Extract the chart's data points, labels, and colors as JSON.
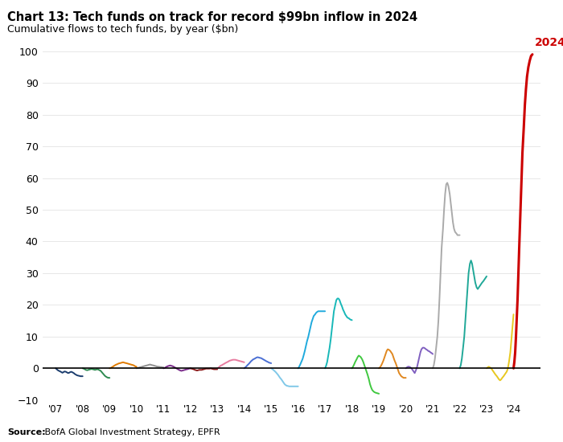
{
  "title": "Chart 13: Tech funds on track for record $99bn inflow in 2024",
  "subtitle": "Cumulative flows to tech funds, by year ($bn)",
  "source_bold": "Source:",
  "source_rest": " BofA Global Investment Strategy, EPFR",
  "xlabel_ticks": [
    "'07",
    "'08",
    "'09",
    "'10",
    "'11",
    "'12",
    "'13",
    "'14",
    "'15",
    "'16",
    "'17",
    "'18",
    "'19",
    "'20",
    "'21",
    "'22",
    "'23",
    "'24"
  ],
  "ylim": [
    -10,
    105
  ],
  "yticks": [
    -10,
    0,
    10,
    20,
    30,
    40,
    50,
    60,
    70,
    80,
    90,
    100
  ],
  "years_label": "2024",
  "label_2024_color": "#cc0000",
  "year_colors": {
    "2007": "#1b3d6e",
    "2008": "#2d8a50",
    "2009": "#e07b00",
    "2010": "#909090",
    "2011": "#7b2d8b",
    "2012": "#8b1a1a",
    "2013": "#e87ca0",
    "2014": "#4a6fd4",
    "2015": "#80c8e8",
    "2016": "#20aadd",
    "2017": "#18b8b8",
    "2018": "#40c840",
    "2019": "#e08820",
    "2020": "#8060c0",
    "2021": "#aaaaaa",
    "2022": "#20a898",
    "2023": "#e8c820",
    "2024": "#cc0000"
  },
  "series": {
    "2007": {
      "x": [
        0.0,
        0.04,
        0.08,
        0.12,
        0.17,
        0.21,
        0.25,
        0.29,
        0.33,
        0.38,
        0.42,
        0.46,
        0.5,
        0.54,
        0.58,
        0.63,
        0.67,
        0.71,
        0.75,
        0.79,
        0.83,
        0.88,
        0.92,
        0.96,
        1.0
      ],
      "y": [
        0.0,
        -0.3,
        -0.6,
        -0.8,
        -1.0,
        -1.2,
        -1.4,
        -1.2,
        -1.0,
        -1.1,
        -1.3,
        -1.5,
        -1.4,
        -1.2,
        -1.1,
        -1.3,
        -1.5,
        -1.8,
        -2.0,
        -2.2,
        -2.3,
        -2.4,
        -2.5,
        -2.5,
        -2.5
      ]
    },
    "2008": {
      "x": [
        0.0,
        0.04,
        0.08,
        0.12,
        0.17,
        0.21,
        0.25,
        0.29,
        0.33,
        0.38,
        0.42,
        0.46,
        0.5,
        0.54,
        0.58,
        0.63,
        0.67,
        0.71,
        0.75,
        0.79,
        0.83,
        0.88,
        0.92,
        0.96,
        1.0
      ],
      "y": [
        0.0,
        -0.1,
        -0.3,
        -0.5,
        -0.6,
        -0.5,
        -0.4,
        -0.3,
        -0.2,
        -0.3,
        -0.4,
        -0.5,
        -0.4,
        -0.3,
        -0.4,
        -0.6,
        -0.8,
        -1.2,
        -1.6,
        -2.0,
        -2.4,
        -2.7,
        -2.9,
        -3.0,
        -3.0
      ]
    },
    "2009": {
      "x": [
        0.0,
        0.04,
        0.08,
        0.12,
        0.17,
        0.21,
        0.25,
        0.29,
        0.33,
        0.38,
        0.42,
        0.46,
        0.5,
        0.54,
        0.58,
        0.63,
        0.67,
        0.71,
        0.75,
        0.79,
        0.83,
        0.88,
        0.92,
        0.96,
        1.0
      ],
      "y": [
        0.0,
        0.1,
        0.3,
        0.5,
        0.8,
        1.0,
        1.2,
        1.3,
        1.5,
        1.6,
        1.7,
        1.8,
        1.9,
        1.8,
        1.7,
        1.6,
        1.5,
        1.4,
        1.3,
        1.2,
        1.1,
        1.0,
        0.8,
        0.6,
        0.5
      ]
    },
    "2010": {
      "x": [
        0.0,
        0.04,
        0.08,
        0.12,
        0.17,
        0.21,
        0.25,
        0.29,
        0.33,
        0.38,
        0.42,
        0.46,
        0.5,
        0.54,
        0.58,
        0.63,
        0.67,
        0.71,
        0.75,
        0.79,
        0.83,
        0.88,
        0.92,
        0.96,
        1.0
      ],
      "y": [
        0.0,
        0.1,
        0.2,
        0.3,
        0.4,
        0.5,
        0.6,
        0.7,
        0.8,
        0.9,
        1.0,
        1.1,
        1.2,
        1.1,
        1.0,
        0.9,
        0.8,
        0.7,
        0.6,
        0.5,
        0.5,
        0.4,
        0.4,
        0.3,
        0.3
      ]
    },
    "2011": {
      "x": [
        0.0,
        0.04,
        0.08,
        0.12,
        0.17,
        0.21,
        0.25,
        0.29,
        0.33,
        0.38,
        0.42,
        0.46,
        0.5,
        0.54,
        0.58,
        0.63,
        0.67,
        0.71,
        0.75,
        0.79,
        0.83,
        0.88,
        0.92,
        0.96,
        1.0
      ],
      "y": [
        0.0,
        0.1,
        0.3,
        0.5,
        0.7,
        0.8,
        0.9,
        0.8,
        0.7,
        0.5,
        0.3,
        0.1,
        -0.1,
        -0.3,
        -0.5,
        -0.7,
        -0.8,
        -0.7,
        -0.6,
        -0.5,
        -0.4,
        -0.3,
        -0.2,
        -0.1,
        0.0
      ]
    },
    "2012": {
      "x": [
        0.0,
        0.04,
        0.08,
        0.12,
        0.17,
        0.21,
        0.25,
        0.29,
        0.33,
        0.38,
        0.42,
        0.46,
        0.5,
        0.54,
        0.58,
        0.63,
        0.67,
        0.71,
        0.75,
        0.79,
        0.83,
        0.88,
        0.92,
        0.96,
        1.0
      ],
      "y": [
        0.0,
        -0.1,
        -0.2,
        -0.3,
        -0.5,
        -0.6,
        -0.7,
        -0.6,
        -0.5,
        -0.5,
        -0.5,
        -0.4,
        -0.3,
        -0.2,
        -0.1,
        -0.1,
        -0.1,
        -0.1,
        0.0,
        -0.1,
        -0.2,
        -0.3,
        -0.3,
        -0.3,
        -0.3
      ]
    },
    "2013": {
      "x": [
        0.0,
        0.04,
        0.08,
        0.12,
        0.17,
        0.21,
        0.25,
        0.29,
        0.33,
        0.38,
        0.42,
        0.46,
        0.5,
        0.54,
        0.58,
        0.63,
        0.67,
        0.71,
        0.75,
        0.79,
        0.83,
        0.88,
        0.92,
        0.96,
        1.0
      ],
      "y": [
        0.0,
        0.2,
        0.5,
        0.8,
        1.0,
        1.2,
        1.4,
        1.6,
        1.8,
        2.0,
        2.2,
        2.4,
        2.5,
        2.6,
        2.7,
        2.7,
        2.7,
        2.6,
        2.5,
        2.4,
        2.3,
        2.2,
        2.1,
        2.0,
        1.9
      ]
    },
    "2014": {
      "x": [
        0.0,
        0.04,
        0.08,
        0.12,
        0.17,
        0.21,
        0.25,
        0.29,
        0.33,
        0.38,
        0.42,
        0.46,
        0.5,
        0.54,
        0.58,
        0.63,
        0.67,
        0.71,
        0.75,
        0.79,
        0.83,
        0.88,
        0.92,
        0.96,
        1.0
      ],
      "y": [
        0.0,
        0.3,
        0.6,
        1.0,
        1.4,
        1.8,
        2.2,
        2.5,
        2.8,
        3.0,
        3.2,
        3.4,
        3.5,
        3.4,
        3.3,
        3.2,
        3.0,
        2.8,
        2.6,
        2.4,
        2.2,
        2.0,
        1.8,
        1.7,
        1.6
      ]
    },
    "2015": {
      "x": [
        0.0,
        0.04,
        0.08,
        0.12,
        0.17,
        0.21,
        0.25,
        0.29,
        0.33,
        0.38,
        0.42,
        0.46,
        0.5,
        0.54,
        0.58,
        0.63,
        0.67,
        0.71,
        0.75,
        0.79,
        0.83,
        0.88,
        0.92,
        0.96,
        1.0
      ],
      "y": [
        0.0,
        -0.2,
        -0.5,
        -0.8,
        -1.2,
        -1.6,
        -2.0,
        -2.5,
        -3.0,
        -3.5,
        -4.0,
        -4.5,
        -5.0,
        -5.3,
        -5.5,
        -5.6,
        -5.7,
        -5.7,
        -5.7,
        -5.7,
        -5.7,
        -5.7,
        -5.7,
        -5.7,
        -5.7
      ]
    },
    "2016": {
      "x": [
        0.0,
        0.04,
        0.08,
        0.12,
        0.17,
        0.21,
        0.25,
        0.29,
        0.33,
        0.38,
        0.42,
        0.46,
        0.5,
        0.54,
        0.58,
        0.63,
        0.67,
        0.71,
        0.75,
        0.79,
        0.83,
        0.88,
        0.92,
        0.96,
        1.0
      ],
      "y": [
        0.0,
        0.5,
        1.2,
        2.0,
        3.0,
        4.2,
        5.5,
        7.0,
        8.5,
        10.0,
        11.5,
        13.0,
        14.5,
        15.5,
        16.5,
        17.0,
        17.5,
        17.8,
        18.0,
        18.0,
        18.0,
        18.0,
        18.0,
        18.0,
        18.0
      ]
    },
    "2017": {
      "x": [
        0.0,
        0.04,
        0.08,
        0.12,
        0.17,
        0.21,
        0.25,
        0.29,
        0.33,
        0.38,
        0.42,
        0.46,
        0.5,
        0.54,
        0.58,
        0.63,
        0.67,
        0.71,
        0.75,
        0.79,
        0.83,
        0.88,
        0.92,
        0.96,
        1.0
      ],
      "y": [
        0.0,
        0.8,
        2.0,
        4.0,
        6.5,
        9.0,
        12.0,
        15.0,
        18.0,
        20.0,
        21.5,
        22.0,
        22.0,
        21.5,
        20.5,
        19.5,
        18.5,
        17.8,
        17.0,
        16.5,
        16.0,
        15.8,
        15.5,
        15.3,
        15.2
      ]
    },
    "2018": {
      "x": [
        0.0,
        0.04,
        0.08,
        0.12,
        0.17,
        0.21,
        0.25,
        0.29,
        0.33,
        0.38,
        0.42,
        0.46,
        0.5,
        0.54,
        0.58,
        0.63,
        0.67,
        0.71,
        0.75,
        0.79,
        0.83,
        0.88,
        0.92,
        0.96,
        1.0
      ],
      "y": [
        0.0,
        0.5,
        1.2,
        2.0,
        2.8,
        3.5,
        4.0,
        3.8,
        3.5,
        2.8,
        2.0,
        1.0,
        0.0,
        -1.0,
        -2.0,
        -3.5,
        -5.0,
        -6.0,
        -6.8,
        -7.2,
        -7.5,
        -7.7,
        -7.8,
        -7.9,
        -8.0
      ]
    },
    "2019": {
      "x": [
        0.0,
        0.04,
        0.08,
        0.12,
        0.17,
        0.21,
        0.25,
        0.29,
        0.33,
        0.38,
        0.42,
        0.46,
        0.5,
        0.54,
        0.58,
        0.63,
        0.67,
        0.71,
        0.75,
        0.79,
        0.83,
        0.88,
        0.92,
        0.96,
        1.0
      ],
      "y": [
        0.0,
        0.3,
        0.8,
        1.5,
        2.5,
        3.5,
        4.5,
        5.5,
        6.0,
        5.8,
        5.5,
        5.0,
        4.5,
        3.5,
        2.5,
        1.5,
        0.5,
        -0.5,
        -1.5,
        -2.0,
        -2.5,
        -2.8,
        -3.0,
        -3.0,
        -3.0
      ]
    },
    "2020": {
      "x": [
        0.0,
        0.04,
        0.08,
        0.12,
        0.17,
        0.21,
        0.25,
        0.29,
        0.33,
        0.38,
        0.42,
        0.46,
        0.5,
        0.54,
        0.58,
        0.63,
        0.67,
        0.71,
        0.75,
        0.79,
        0.83,
        0.88,
        0.92,
        0.96,
        1.0
      ],
      "y": [
        0.0,
        0.3,
        0.5,
        0.5,
        0.3,
        0.0,
        -0.5,
        -1.0,
        -1.5,
        -0.5,
        0.5,
        2.0,
        3.5,
        5.0,
        6.0,
        6.5,
        6.5,
        6.3,
        6.0,
        5.8,
        5.5,
        5.3,
        5.0,
        4.8,
        4.5
      ]
    },
    "2021": {
      "x": [
        0.0,
        0.04,
        0.08,
        0.12,
        0.17,
        0.21,
        0.25,
        0.29,
        0.33,
        0.38,
        0.42,
        0.46,
        0.5,
        0.54,
        0.58,
        0.63,
        0.67,
        0.71,
        0.75,
        0.79,
        0.83,
        0.88,
        0.92,
        0.96,
        1.0
      ],
      "y": [
        0.0,
        1.0,
        3.0,
        6.0,
        10.0,
        15.0,
        22.0,
        30.0,
        38.0,
        44.0,
        50.0,
        55.0,
        58.0,
        58.5,
        57.5,
        55.0,
        52.0,
        49.0,
        46.0,
        44.0,
        43.0,
        42.5,
        42.0,
        42.0,
        42.0
      ]
    },
    "2022": {
      "x": [
        0.0,
        0.04,
        0.08,
        0.12,
        0.17,
        0.21,
        0.25,
        0.29,
        0.33,
        0.38,
        0.42,
        0.46,
        0.5,
        0.54,
        0.58,
        0.63,
        0.67,
        0.71,
        0.75,
        0.79,
        0.83,
        0.88,
        0.92,
        0.96,
        1.0
      ],
      "y": [
        0.0,
        1.0,
        3.0,
        6.0,
        10.0,
        15.0,
        20.0,
        25.0,
        30.0,
        33.0,
        34.0,
        33.0,
        31.0,
        29.0,
        27.0,
        25.5,
        25.0,
        25.5,
        26.0,
        26.5,
        27.0,
        27.5,
        28.0,
        28.5,
        29.0
      ]
    },
    "2023": {
      "x": [
        0.0,
        0.04,
        0.08,
        0.12,
        0.17,
        0.21,
        0.25,
        0.29,
        0.33,
        0.38,
        0.42,
        0.46,
        0.5,
        0.54,
        0.58,
        0.63,
        0.67,
        0.71,
        0.75,
        0.79,
        0.83,
        0.88,
        0.92,
        0.96,
        1.0
      ],
      "y": [
        0.0,
        0.3,
        0.5,
        0.3,
        0.0,
        -0.5,
        -1.0,
        -1.5,
        -2.0,
        -2.5,
        -3.0,
        -3.5,
        -3.8,
        -3.5,
        -3.0,
        -2.5,
        -2.0,
        -1.5,
        -1.0,
        0.0,
        2.0,
        5.0,
        9.0,
        13.0,
        17.0
      ]
    },
    "2024": {
      "x": [
        0.0,
        0.03,
        0.06,
        0.09,
        0.12,
        0.15,
        0.18,
        0.21,
        0.25,
        0.29,
        0.33,
        0.38,
        0.42,
        0.46,
        0.5,
        0.55,
        0.6,
        0.65,
        0.7
      ],
      "y": [
        0.0,
        2.0,
        5.0,
        10.0,
        16.0,
        22.0,
        30.0,
        38.0,
        48.0,
        58.0,
        68.0,
        76.0,
        83.0,
        88.0,
        92.0,
        95.0,
        97.0,
        98.5,
        99.0
      ]
    }
  }
}
